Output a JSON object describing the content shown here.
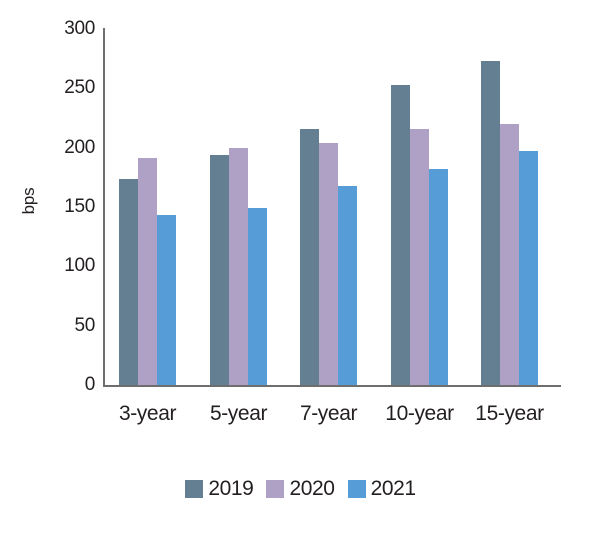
{
  "chart_data": {
    "type": "bar",
    "title": "",
    "ylabel": "bps",
    "xlabel": "",
    "categories": [
      "3-year",
      "5-year",
      "7-year",
      "10-year",
      "15-year"
    ],
    "series": [
      {
        "name": "2019",
        "color": "#647F92",
        "values": [
          174,
          194,
          216,
          253,
          273
        ]
      },
      {
        "name": "2020",
        "color": "#AFA0C6",
        "values": [
          191,
          200,
          204,
          216,
          220
        ]
      },
      {
        "name": "2021",
        "color": "#569CD6",
        "values": [
          143,
          149,
          168,
          182,
          197
        ]
      }
    ],
    "ylim": [
      0,
      300
    ],
    "yticks": [
      0,
      50,
      100,
      150,
      200,
      250,
      300
    ],
    "grid": false,
    "legend_position": "bottom"
  },
  "colors": {
    "axis": "#6E6E6E",
    "text": "#231F20",
    "background": "#FFFFFF"
  }
}
